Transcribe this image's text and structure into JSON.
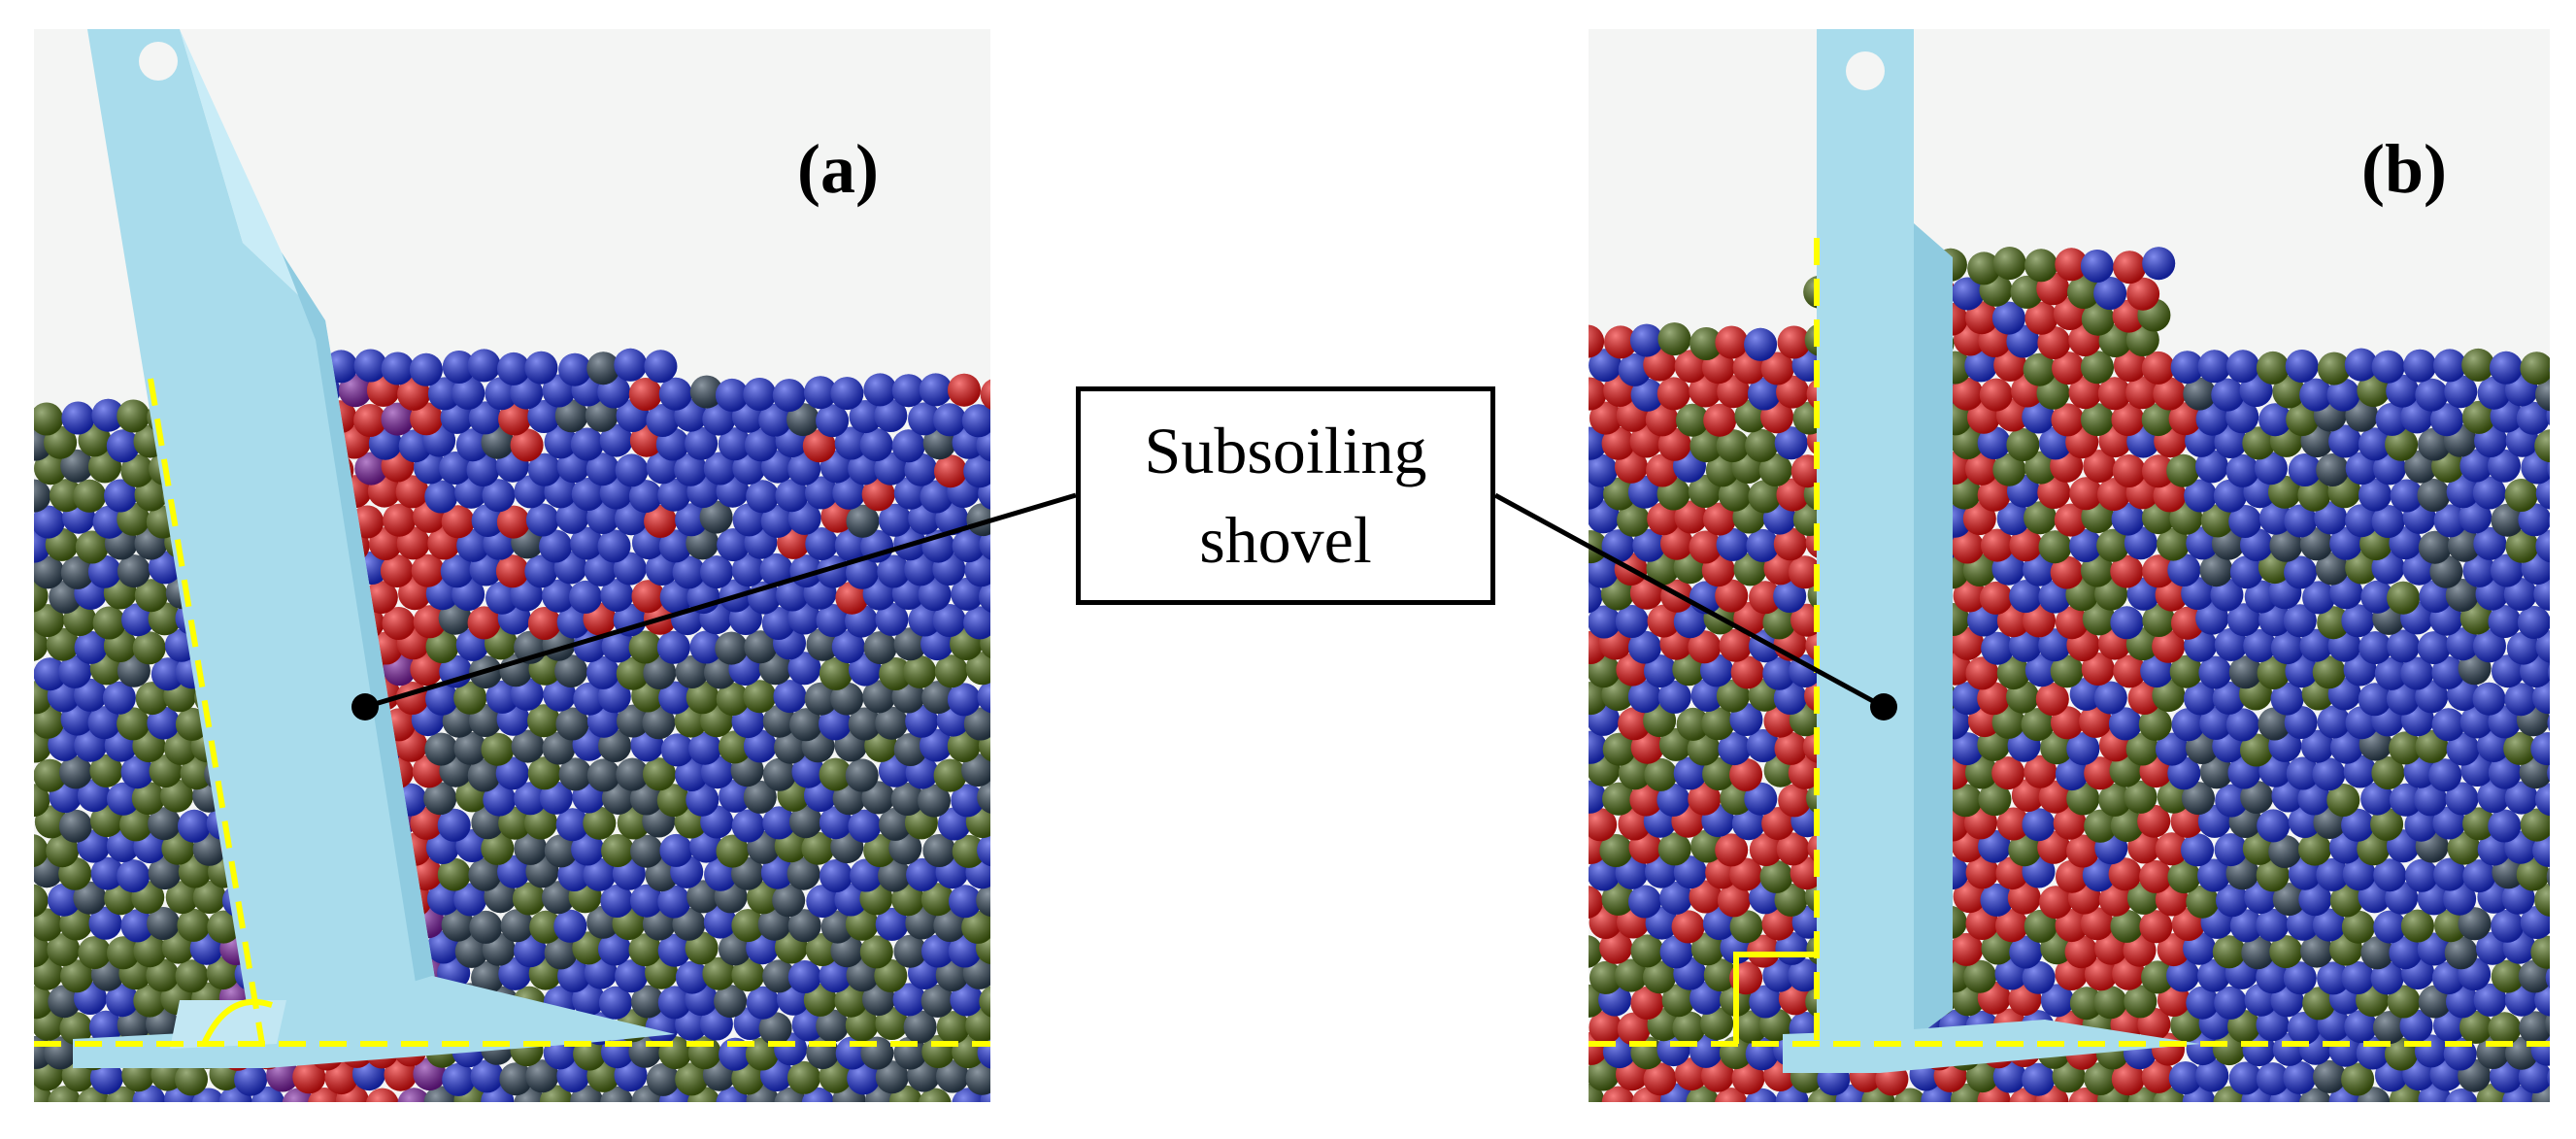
{
  "panels": [
    {
      "id": "a",
      "label": "(a)"
    },
    {
      "id": "b",
      "label": "(b)"
    }
  ],
  "callout": {
    "line1": "Subsoiling",
    "line2": "shovel"
  },
  "colors": {
    "background": "#f4f5f4",
    "shovel": "#a9dcec",
    "particle_blue": "#1a2ee0",
    "particle_red": "#f01010",
    "particle_green": "#4a6a10",
    "particle_dark": "#2f4356",
    "particle_purple": "#7a1aa0",
    "guide_line": "#ffff00"
  }
}
